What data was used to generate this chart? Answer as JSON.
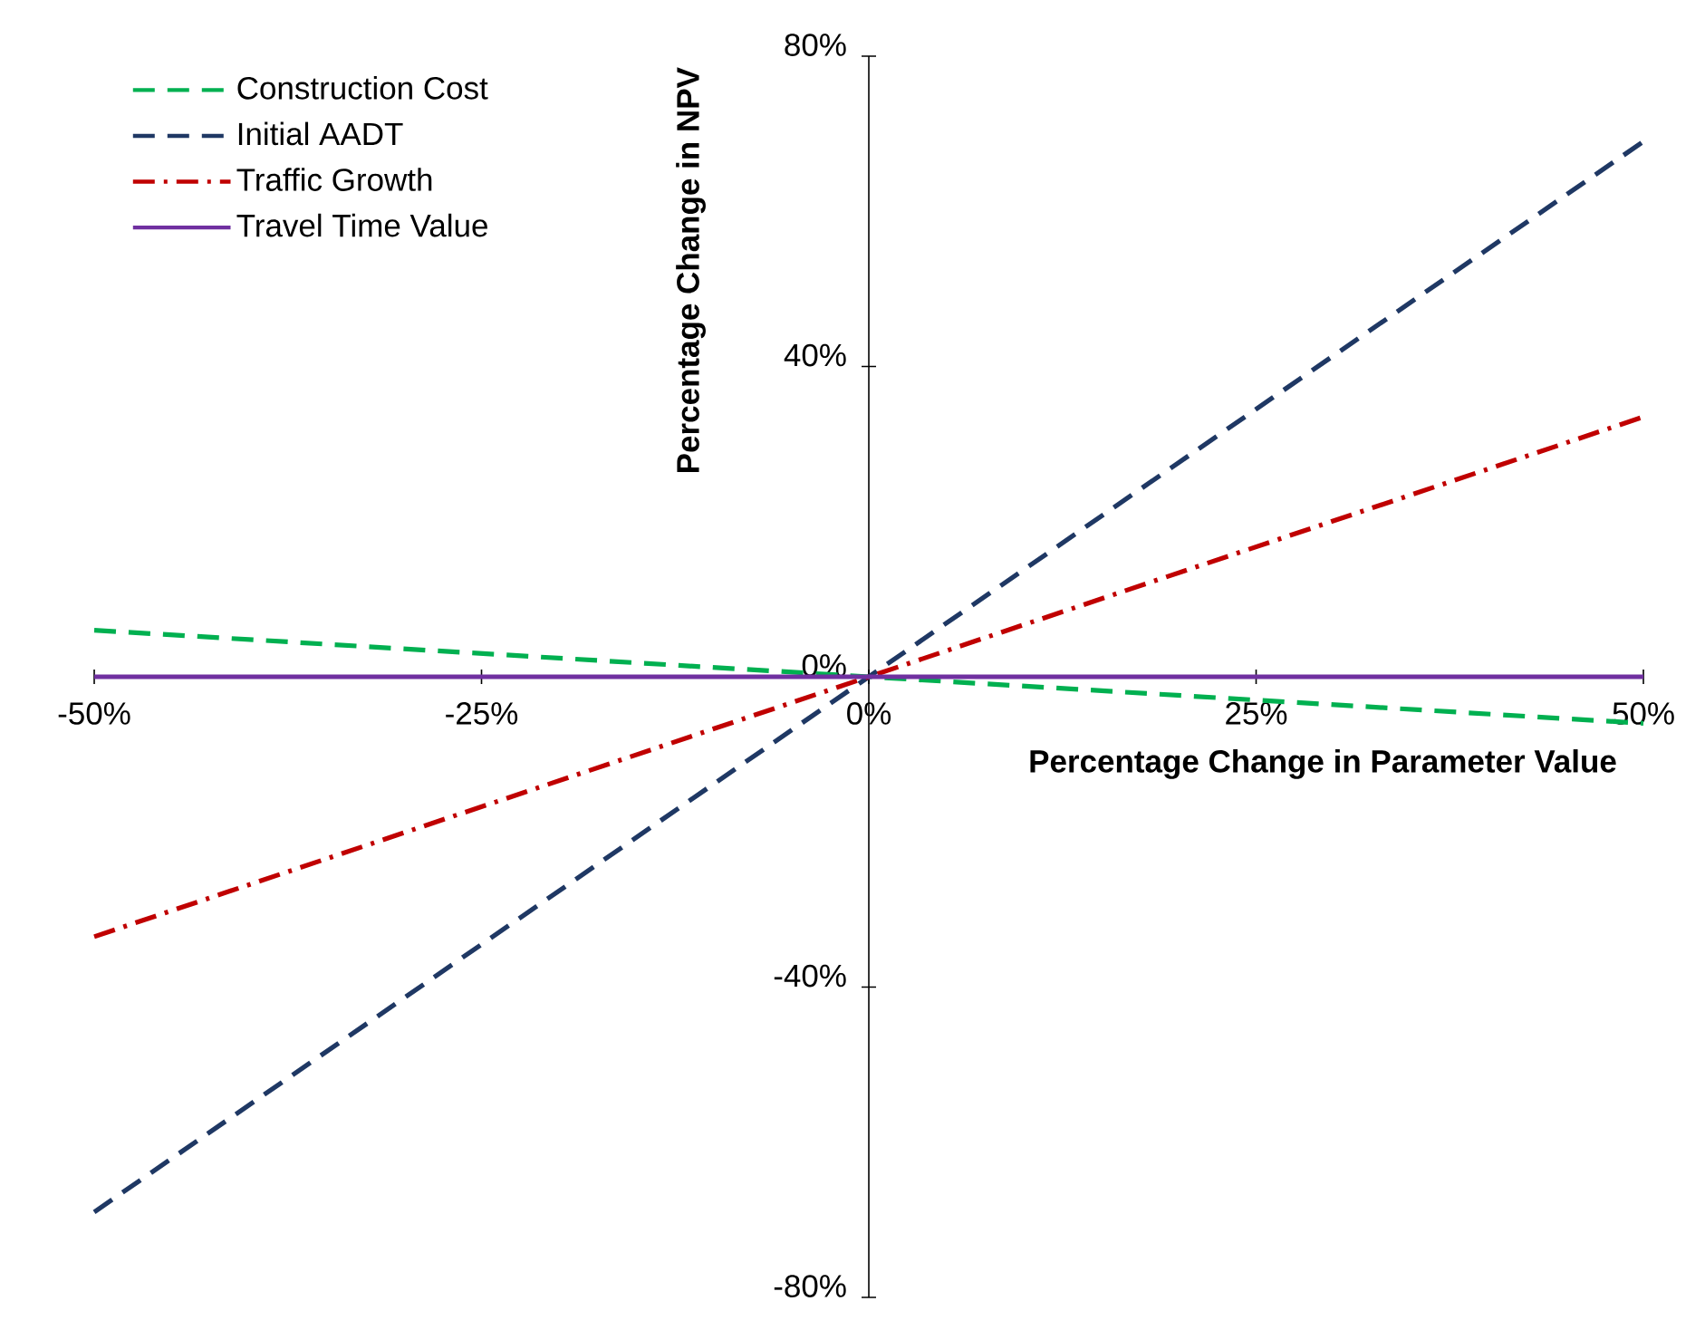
{
  "chart_data": {
    "type": "line",
    "xlabel": "Percentage Change in Parameter Value",
    "ylabel": "Percentage Change in NPV",
    "xlim": [
      -50,
      50
    ],
    "ylim": [
      -80,
      80
    ],
    "xticks": [
      {
        "value": -50,
        "label": "-50%"
      },
      {
        "value": -25,
        "label": "-25%"
      },
      {
        "value": 0,
        "label": "0%"
      },
      {
        "value": 25,
        "label": "25%"
      },
      {
        "value": 50,
        "label": "50%"
      }
    ],
    "yticks": [
      {
        "value": -80,
        "label": "-80%"
      },
      {
        "value": -40,
        "label": "-40%"
      },
      {
        "value": 0,
        "label": "0%"
      },
      {
        "value": 40,
        "label": "40%"
      },
      {
        "value": 80,
        "label": "80%"
      }
    ],
    "grid": false,
    "legend": "top left",
    "marker": "none",
    "series": [
      {
        "name": "Construction Cost",
        "color": "#00b050",
        "line_style": "dashed",
        "x": [
          -50,
          0,
          50
        ],
        "values": [
          6,
          0,
          -6
        ]
      },
      {
        "name": "Initial AADT",
        "color": "#1f3864",
        "line_style": "dashed",
        "x": [
          -50,
          0,
          50
        ],
        "values": [
          -69,
          0,
          69
        ]
      },
      {
        "name": "Traffic Growth",
        "color": "#c00000",
        "line_style": "dashdot",
        "x": [
          -50,
          0,
          50
        ],
        "values": [
          -33.5,
          0,
          33.5
        ]
      },
      {
        "name": "Travel Time Value",
        "color": "#7030a0",
        "line_style": "solid",
        "x": [
          -50,
          0,
          50
        ],
        "values": [
          0,
          0,
          0
        ]
      }
    ]
  }
}
